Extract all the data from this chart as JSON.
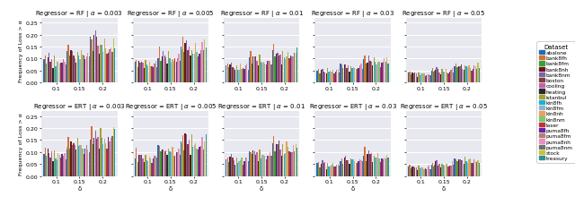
{
  "regressors": [
    "RF",
    "ERT"
  ],
  "alphas": [
    0.003,
    0.005,
    0.01,
    0.03,
    0.05
  ],
  "deltas": [
    0.1,
    0.15,
    0.2
  ],
  "datasets": [
    "abalone",
    "bank8fh",
    "bank8fm",
    "bank8nh",
    "bank8nm",
    "boston",
    "cooling",
    "heating",
    "istanbul",
    "kin8fh",
    "kin8fm",
    "kin8nh",
    "kin8nm",
    "laser",
    "puma8fh",
    "puma8fm",
    "puma8nh",
    "puma8nm",
    "stock",
    "treasury"
  ],
  "colors": {
    "abalone": "#1f6eb5",
    "bank8fh": "#d4703a",
    "bank8fm": "#3a9e3a",
    "bank8nh": "#6e1515",
    "bank8nm": "#7b62b0",
    "boston": "#7a4533",
    "cooling": "#c75faa",
    "heating": "#2a2a2a",
    "istanbul": "#a8a030",
    "kin8fh": "#22b0c8",
    "kin8fm": "#8ab4d8",
    "kin8nh": "#e8a060",
    "kin8nm": "#78c878",
    "laser": "#c03030",
    "puma8fh": "#6a22a8",
    "puma8fm": "#b08070",
    "puma8nh": "#e890c0",
    "puma8nm": "#707070",
    "stock": "#c8c040",
    "treasury": "#309090"
  },
  "ylim": [
    0.0,
    0.27
  ],
  "yticks": [
    0.0,
    0.05,
    0.1,
    0.15,
    0.2,
    0.25
  ],
  "xticks": [
    0.1,
    0.15,
    0.2
  ],
  "ylabel": "Frequency of Loss > α",
  "xlabel": "δ",
  "background_color": "#e8e8f0",
  "figwidth": 6.4,
  "figheight": 2.3,
  "dpi": 100,
  "title_fontsize": 5.0,
  "tick_fontsize": 4.5,
  "legend_fontsize": 4.2,
  "legend_title_fontsize": 5.0
}
